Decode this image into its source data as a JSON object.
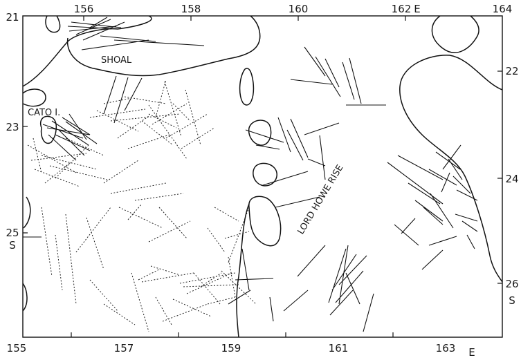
{
  "map": {
    "top_ticks": [
      {
        "label": "156"
      },
      {
        "label": "158"
      },
      {
        "label": "160"
      },
      {
        "label": "162"
      },
      {
        "label": "164"
      }
    ],
    "top_unit": "E",
    "bottom_ticks": [
      {
        "label": "155"
      },
      {
        "label": "157"
      },
      {
        "label": "159"
      },
      {
        "label": "161"
      },
      {
        "label": "163"
      }
    ],
    "bottom_unit": "E",
    "left_ticks": [
      {
        "label": "21"
      },
      {
        "label": "23"
      },
      {
        "label": "25"
      }
    ],
    "left_unit": "S",
    "right_ticks": [
      {
        "label": "22"
      },
      {
        "label": "24"
      },
      {
        "label": "26"
      }
    ],
    "right_unit": "S",
    "places": {
      "shoal": "SHOAL",
      "cato": "CATO I.",
      "lord_howe": "LORD HOWE RISE"
    }
  }
}
